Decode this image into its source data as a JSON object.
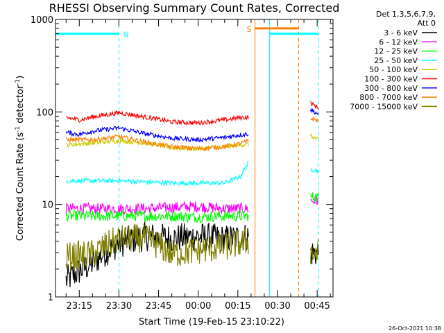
{
  "chart_data": {
    "type": "line",
    "title": "RHESSI Observing Summary Count Rates, Corrected",
    "xlabel": "Start Time (19-Feb-15 23:10:22)",
    "ylabel": "Corrected Count Rate (s⁻¹ detector⁻¹)",
    "ylabel_parts": {
      "main": "Corrected Count Rate (s",
      "exp1": "-1",
      "mid": " detector",
      "exp2": "-1",
      "end": ")"
    },
    "yscale": "log",
    "ylim": [
      1,
      1000
    ],
    "xlim_minutes": [
      -4,
      101
    ],
    "y_ticks": [
      {
        "value": 1,
        "label": "1"
      },
      {
        "value": 10,
        "label": "10"
      },
      {
        "value": 100,
        "label": "100"
      },
      {
        "value": 1000,
        "label": "1000"
      }
    ],
    "x_ticks": [
      {
        "minute": 5,
        "label": "23:15"
      },
      {
        "minute": 20,
        "label": "23:30"
      },
      {
        "minute": 35,
        "label": "23:45"
      },
      {
        "minute": 50,
        "label": "00:00"
      },
      {
        "minute": 65,
        "label": "00:15"
      },
      {
        "minute": 80,
        "label": "00:30"
      },
      {
        "minute": 95,
        "label": "00:45"
      }
    ],
    "legend_header": [
      "Det 1,3,5,6,7,9,",
      "Att 0"
    ],
    "legend_position": "right",
    "series": [
      {
        "name": "3 - 6 keV",
        "color": "#000000",
        "x": [
          0,
          10,
          20,
          30,
          40,
          50,
          60,
          69,
          92.5,
          95.5
        ],
        "values": [
          1.5,
          2.3,
          3.8,
          4.5,
          4.3,
          4.5,
          4.2,
          4.5,
          3,
          3
        ]
      },
      {
        "name": "6 - 12 keV",
        "color": "#ff00ff",
        "x": [
          0,
          10,
          20,
          30,
          40,
          50,
          60,
          69,
          92.5,
          95.5
        ],
        "values": [
          9,
          9,
          9,
          9,
          9.3,
          9.5,
          9,
          9,
          11,
          11
        ]
      },
      {
        "name": "12 - 25 keV",
        "color": "#00ff00",
        "x": [
          0,
          10,
          20,
          30,
          40,
          50,
          60,
          69,
          92.5,
          95.5
        ],
        "values": [
          7.5,
          7.5,
          7.5,
          7.5,
          7.5,
          7.3,
          7.5,
          7.5,
          12,
          12
        ]
      },
      {
        "name": "25 - 50 keV",
        "color": "#00ffff",
        "x": [
          0,
          10,
          20,
          30,
          40,
          50,
          60,
          66,
          69,
          92.5,
          95.5
        ],
        "values": [
          18,
          18,
          18,
          17.5,
          17,
          17,
          17,
          20,
          28,
          24,
          23
        ]
      },
      {
        "name": "50 - 100 keV",
        "color": "#cccc00",
        "x": [
          0,
          10,
          20,
          30,
          40,
          50,
          60,
          69,
          92.5,
          95.5
        ],
        "values": [
          44,
          46,
          49,
          46,
          41,
          40,
          42,
          45,
          55,
          50
        ]
      },
      {
        "name": "100 - 300 keV",
        "color": "#ff0000",
        "x": [
          0,
          5,
          10,
          20,
          30,
          40,
          50,
          60,
          65,
          69,
          92.5,
          95.5
        ],
        "values": [
          87,
          82,
          88,
          98,
          88,
          78,
          76,
          82,
          86,
          88,
          125,
          110
        ]
      },
      {
        "name": "300 - 800 keV",
        "color": "#0000ff",
        "x": [
          0,
          5,
          10,
          20,
          30,
          40,
          50,
          60,
          65,
          69,
          92.5,
          95.5
        ],
        "values": [
          60,
          57,
          62,
          67,
          58,
          52,
          50,
          53,
          56,
          58,
          105,
          95
        ]
      },
      {
        "name": "800 - 7000 keV",
        "color": "#ff8000",
        "x": [
          0,
          10,
          20,
          30,
          40,
          50,
          60,
          65,
          69,
          92.5,
          95.5
        ],
        "values": [
          50,
          50,
          54,
          47,
          42,
          40,
          42,
          45,
          48,
          85,
          80
        ]
      },
      {
        "name": "7000 - 15000 keV",
        "color": "#808000",
        "x": [
          0,
          10,
          20,
          30,
          40,
          50,
          60,
          69,
          92.5,
          95.5
        ],
        "values": [
          2.7,
          2.9,
          4.2,
          4.3,
          2.9,
          3.2,
          3.5,
          4,
          3,
          3
        ]
      }
    ],
    "flag_markers": [
      {
        "label": "N",
        "color": "#00ffff",
        "x_start": -4,
        "x_end": 20,
        "value": 700
      },
      {
        "label": "S",
        "color": "#ff8000",
        "x_start": 71.5,
        "x_end": 88,
        "value": 800
      },
      {
        "label": "",
        "color": "#00ffff",
        "x_start": 77,
        "x_end": 95.5,
        "value": 700
      }
    ],
    "vertical_lines": [
      {
        "x": -4,
        "color": "#00ffff",
        "style": "solid"
      },
      {
        "x": 20,
        "color": "#00ffff",
        "style": "dashed"
      },
      {
        "x": 71.5,
        "color": "#ff8000",
        "style": "solid"
      },
      {
        "x": 77,
        "color": "#00ffff",
        "style": "solid"
      },
      {
        "x": 88,
        "color": "#ff8000",
        "style": "dashed"
      },
      {
        "x": 95.5,
        "color": "#00ffff",
        "style": "dashed"
      }
    ],
    "data_gaps_minutes": [
      [
        69.2,
        92.5
      ]
    ]
  },
  "timestamp": "26-Oct-2021 10:38"
}
